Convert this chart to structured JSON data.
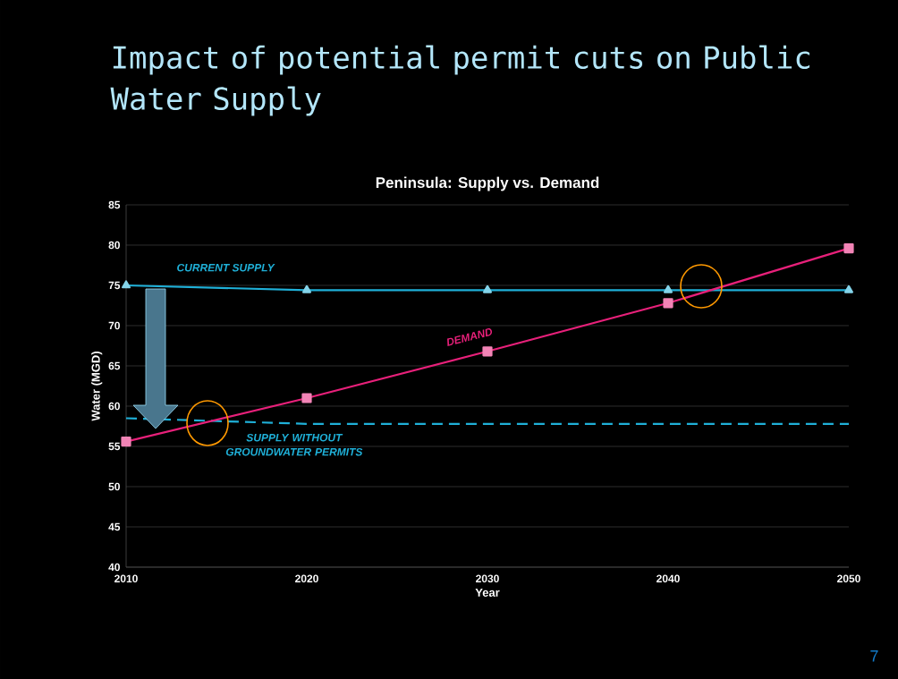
{
  "chart_data": {
    "type": "line",
    "title": "Impact of potential permit cuts on Public Water Supply",
    "subtitle": "Peninsula:  Supply vs. Demand",
    "xlabel": "Year",
    "ylabel": "Water (MGD)",
    "xlim": [
      2010,
      2050
    ],
    "ylim": [
      40,
      85
    ],
    "xticks": [
      2010,
      2020,
      2030,
      2040,
      2050
    ],
    "yticks": [
      40,
      45,
      50,
      55,
      60,
      65,
      70,
      75,
      80,
      85
    ],
    "grid": "y",
    "legend": false,
    "series": [
      {
        "name": "CURRENT SUPPLY",
        "color": "#1fb0d8",
        "marker": "triangle",
        "line_style": "solid",
        "x": [
          2010,
          2020,
          2030,
          2040,
          2050
        ],
        "values": [
          75,
          74.4,
          74.4,
          74.4,
          74.4
        ]
      },
      {
        "name": "DEMAND",
        "color": "#e8207a",
        "marker": "square",
        "line_style": "solid",
        "x": [
          2010,
          2020,
          2030,
          2040,
          2050
        ],
        "values": [
          55.6,
          61,
          66.8,
          72.8,
          79.6
        ]
      },
      {
        "name": "SUPPLY WITHOUT GROUNDWATER PERMITS",
        "color": "#1fb0d8",
        "marker": "none",
        "line_style": "dashed",
        "x": [
          2010,
          2020,
          2050
        ],
        "values": [
          58.5,
          57.8,
          57.8
        ]
      }
    ],
    "annotations": [
      "7"
    ]
  }
}
